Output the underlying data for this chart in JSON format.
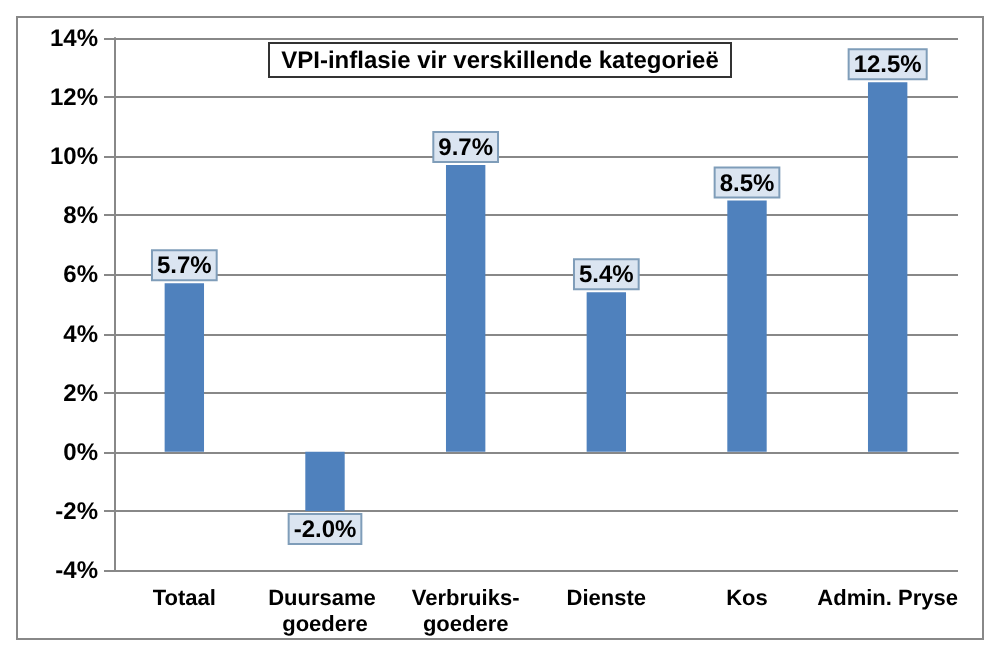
{
  "chart_data": {
    "type": "bar",
    "title": "VPI-inflasie vir verskillende kategorieë",
    "categories": [
      "Totaal",
      "Duursame goedere",
      "Verbruiks-goedere",
      "Dienste",
      "Kos",
      "Admin. Pryse"
    ],
    "values": [
      5.7,
      -2.0,
      9.7,
      5.4,
      8.5,
      12.5
    ],
    "value_labels": [
      "5.7%",
      "-2.0%",
      "9.7%",
      "5.4%",
      "8.5%",
      "12.5%"
    ],
    "color": "#4f81bd",
    "ylim": [
      -4,
      14
    ],
    "yticks": [
      {
        "value": -4,
        "label": "-4%"
      },
      {
        "value": -2,
        "label": "-2%"
      },
      {
        "value": 0,
        "label": "0%"
      },
      {
        "value": 2,
        "label": "2%"
      },
      {
        "value": 4,
        "label": "4%"
      },
      {
        "value": 6,
        "label": "6%"
      },
      {
        "value": 8,
        "label": "8%"
      },
      {
        "value": 10,
        "label": "10%"
      },
      {
        "value": 12,
        "label": "12%"
      },
      {
        "value": 14,
        "label": "14%"
      }
    ],
    "grid": "y"
  }
}
